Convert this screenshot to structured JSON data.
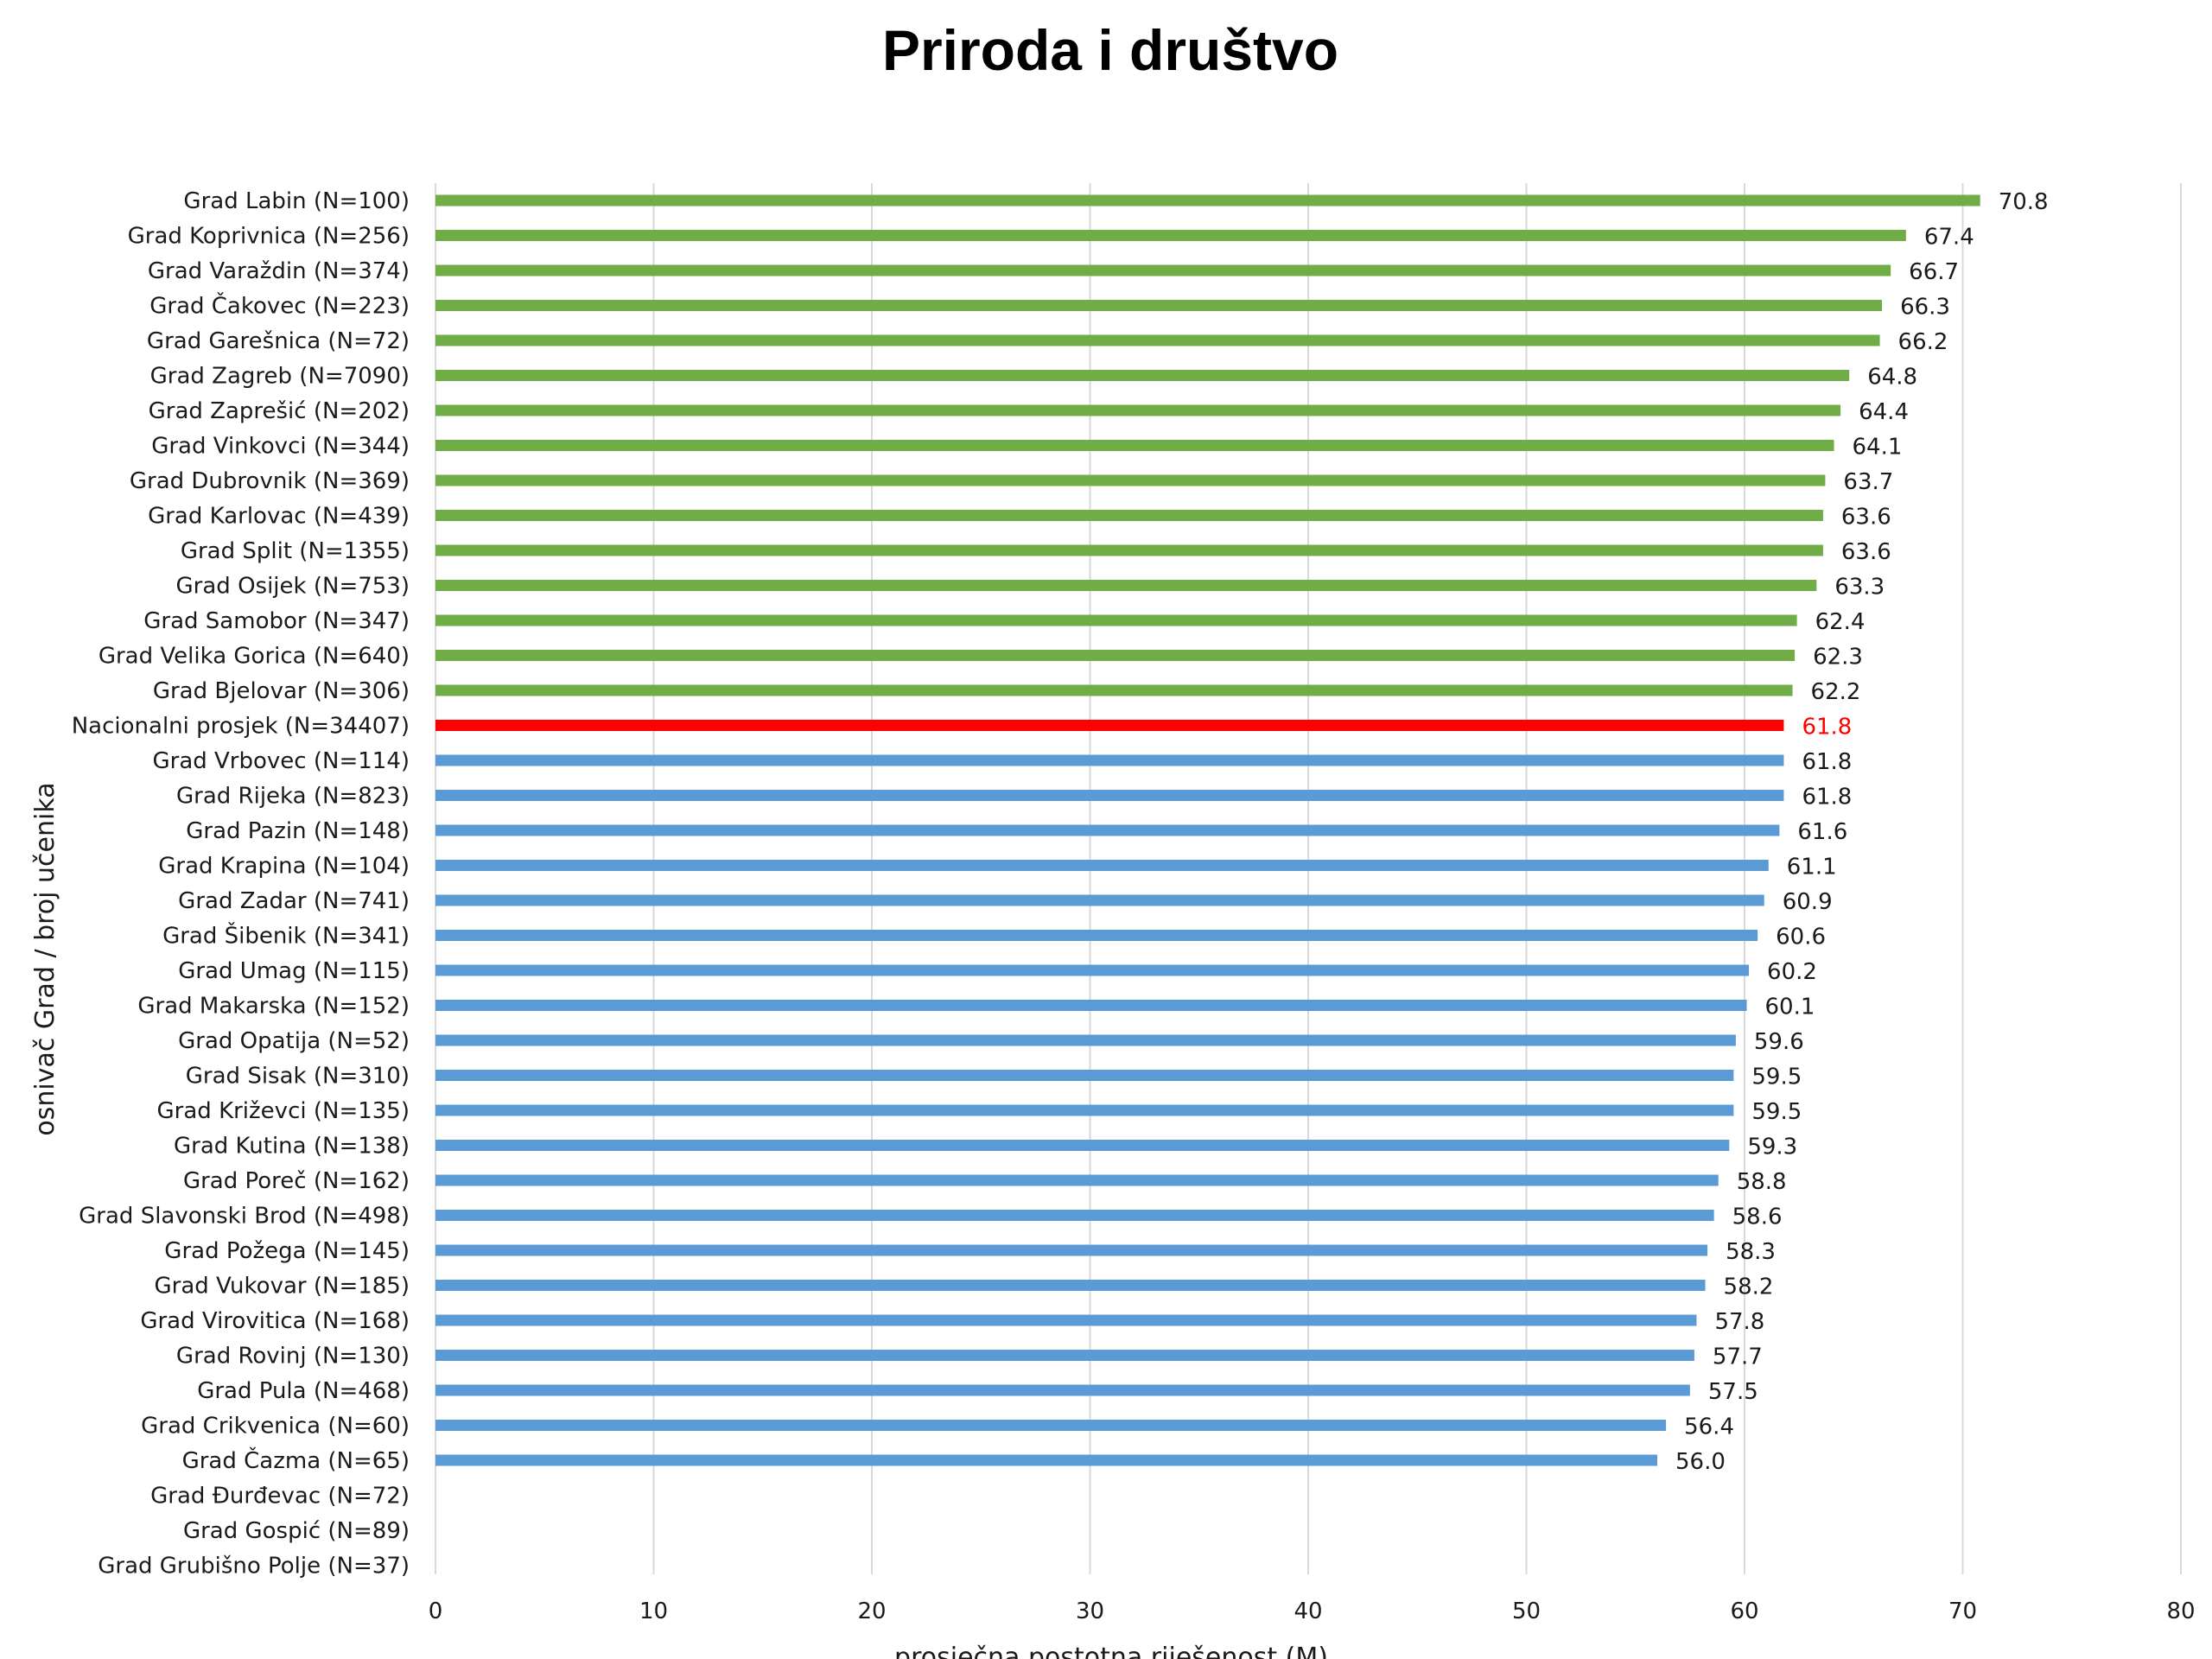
{
  "chart_data": {
    "type": "bar",
    "orientation": "horizontal",
    "title": "Priroda i društvo",
    "xlabel": "prosječna postotna riješenost (M)",
    "ylabel": "osnivač Grad / broj učenika",
    "xlim": [
      0,
      80
    ],
    "xticks": [
      0,
      10,
      20,
      30,
      40,
      50,
      60,
      70,
      80
    ],
    "grid": "vertical",
    "legend": "none",
    "colors": {
      "above": "#70AD47",
      "national": "#FF0000",
      "below": "#5B9BD5",
      "label": "#1a1a1a",
      "national_label": "#FF0000"
    },
    "categories": [
      "Grad Labin (N=100)",
      "Grad Koprivnica (N=256)",
      "Grad Varaždin (N=374)",
      "Grad Čakovec (N=223)",
      "Grad Garešnica (N=72)",
      "Grad Zagreb (N=7090)",
      "Grad Zaprešić (N=202)",
      "Grad Vinkovci (N=344)",
      "Grad Dubrovnik (N=369)",
      "Grad Karlovac (N=439)",
      "Grad Split (N=1355)",
      "Grad Osijek (N=753)",
      "Grad Samobor (N=347)",
      "Grad Velika Gorica (N=640)",
      "Grad Bjelovar (N=306)",
      "Nacionalni prosjek (N=34407)",
      "Grad Vrbovec (N=114)",
      "Grad Rijeka (N=823)",
      "Grad Pazin (N=148)",
      "Grad Krapina (N=104)",
      "Grad Zadar (N=741)",
      "Grad Šibenik (N=341)",
      "Grad Umag (N=115)",
      "Grad Makarska (N=152)",
      "Grad Opatija (N=52)",
      "Grad Sisak (N=310)",
      "Grad Križevci (N=135)",
      "Grad Kutina (N=138)",
      "Grad Poreč (N=162)",
      "Grad Slavonski Brod (N=498)",
      "Grad Požega (N=145)",
      "Grad Vukovar (N=185)",
      "Grad Virovitica (N=168)",
      "Grad Rovinj (N=130)",
      "Grad Pula (N=468)",
      "Grad Crikvenica (N=60)",
      "Grad Čazma (N=65)",
      "Grad Đurđevac (N=72)",
      "Grad Gospić (N=89)",
      "Grad Grubišno Polje (N=37)"
    ],
    "values": [
      70.8,
      67.4,
      66.7,
      66.3,
      66.2,
      64.8,
      64.4,
      64.1,
      63.7,
      63.6,
      63.6,
      63.3,
      62.4,
      62.3,
      62.2,
      61.8,
      61.8,
      61.8,
      61.6,
      61.1,
      60.9,
      60.6,
      60.2,
      60.1,
      59.6,
      59.5,
      59.5,
      59.3,
      58.8,
      58.6,
      58.3,
      58.2,
      57.8,
      57.7,
      57.5,
      56.4,
      56.0,
      null,
      null,
      null
    ],
    "value_labels": [
      "70.8",
      "67.4",
      "66.7",
      "66.3",
      "66.2",
      "64.8",
      "64.4",
      "64.1",
      "63.7",
      "63.6",
      "63.6",
      "63.3",
      "62.4",
      "62.3",
      "62.2",
      "61.8",
      "61.8",
      "61.8",
      "61.6",
      "61.1",
      "60.9",
      "60.6",
      "60.2",
      "60.1",
      "59.6",
      "59.5",
      "59.5",
      "59.3",
      "58.8",
      "58.6",
      "58.3",
      "58.2",
      "57.8",
      "57.7",
      "57.5",
      "56.4",
      "56.0",
      "",
      "",
      ""
    ],
    "national_index": 15
  }
}
